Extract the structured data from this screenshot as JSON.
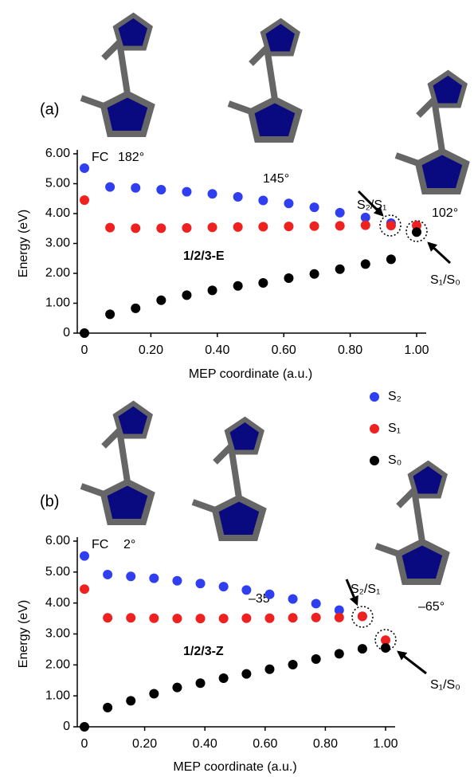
{
  "chart_data": [
    {
      "type": "scatter",
      "annotations": [
        "(a)",
        "FC",
        "182°",
        "145°",
        "102°",
        "S₂/S₁",
        "S₁/S₀",
        "1/2/3-E"
      ],
      "x_label": "MEP coordinate (a.u.)",
      "y_label": "Energy (eV)",
      "x": [
        0,
        0.077,
        0.154,
        0.231,
        0.308,
        0.385,
        0.462,
        0.538,
        0.615,
        0.692,
        0.769,
        0.846,
        0.923,
        1.0
      ],
      "series": [
        {
          "name": "S₂",
          "color": "#2f3ff0",
          "values": [
            5.52,
            4.89,
            4.86,
            4.8,
            4.73,
            4.66,
            4.56,
            4.44,
            4.34,
            4.21,
            4.03,
            3.87,
            3.68,
            null
          ]
        },
        {
          "name": "S₁",
          "color": "#ee2020",
          "values": [
            4.45,
            3.53,
            3.51,
            3.51,
            3.52,
            3.54,
            3.55,
            3.56,
            3.57,
            3.58,
            3.59,
            3.61,
            3.6,
            3.6
          ]
        },
        {
          "name": "S₀",
          "color": "#000000",
          "values": [
            0,
            0.63,
            0.83,
            1.1,
            1.27,
            1.43,
            1.58,
            1.68,
            1.84,
            1.98,
            2.14,
            2.31,
            2.47,
            3.38
          ]
        }
      ],
      "legend": "right",
      "xlim": [
        0,
        1
      ],
      "xticks": [
        0,
        {
          "value": 0.2,
          "label": "0.20"
        },
        {
          "value": 0.4,
          "label": "0.40"
        },
        {
          "value": 0.6,
          "label": "0.60"
        },
        {
          "value": 0.8,
          "label": "0.80"
        },
        {
          "value": 1,
          "label": "1.00"
        }
      ],
      "ylim": [
        0,
        6
      ],
      "yticks": [
        0,
        {
          "value": 1,
          "label": "1.00"
        },
        {
          "value": 2,
          "label": "2.00"
        },
        {
          "value": 3,
          "label": "3.00"
        },
        {
          "value": 4,
          "label": "4.00"
        },
        {
          "value": 5,
          "label": "5.00"
        },
        {
          "value": 6,
          "label": "6.00"
        }
      ]
    },
    {
      "type": "scatter",
      "annotations": [
        "(b)",
        "FC",
        "2°",
        "–35°",
        "–65°",
        "S₂/S₁",
        "S₁/S₀",
        "1/2/3-Z"
      ],
      "x_label": "MEP coordinate (a.u.)",
      "y_label": "Energy (eV)",
      "x": [
        0,
        0.077,
        0.154,
        0.231,
        0.308,
        0.385,
        0.462,
        0.538,
        0.615,
        0.692,
        0.769,
        0.846,
        0.923,
        1.0
      ],
      "series": [
        {
          "color": "#2f3ff0",
          "values": [
            5.52,
            4.92,
            4.86,
            4.8,
            4.72,
            4.63,
            4.53,
            4.42,
            4.28,
            4.13,
            3.98,
            3.77,
            3.57,
            null
          ]
        },
        {
          "color": "#ee2020",
          "values": [
            4.45,
            3.52,
            3.52,
            3.51,
            3.5,
            3.5,
            3.5,
            3.51,
            3.51,
            3.52,
            3.53,
            3.53,
            3.57,
            2.8
          ]
        },
        {
          "color": "#000000",
          "values": [
            0,
            0.62,
            0.84,
            1.07,
            1.27,
            1.41,
            1.57,
            1.71,
            1.86,
            2.01,
            2.19,
            2.36,
            2.52,
            2.55
          ]
        }
      ],
      "xlim": [
        0,
        1
      ],
      "xticks": [
        0,
        {
          "value": 0.2,
          "label": "0.20"
        },
        {
          "value": 0.4,
          "label": "0.40"
        },
        {
          "value": 0.6,
          "label": "0.60"
        },
        {
          "value": 0.8,
          "label": "0.80"
        },
        {
          "value": 1,
          "label": "1.00"
        }
      ],
      "ylim": [
        0,
        6
      ],
      "yticks": [
        0,
        {
          "value": 1,
          "label": "1.00"
        },
        {
          "value": 2,
          "label": "2.00"
        },
        {
          "value": 3,
          "label": "3.00"
        },
        {
          "value": 4,
          "label": "4.00"
        },
        {
          "value": 5,
          "label": "5.00"
        },
        {
          "value": 6,
          "label": "6.00"
        }
      ]
    }
  ]
}
